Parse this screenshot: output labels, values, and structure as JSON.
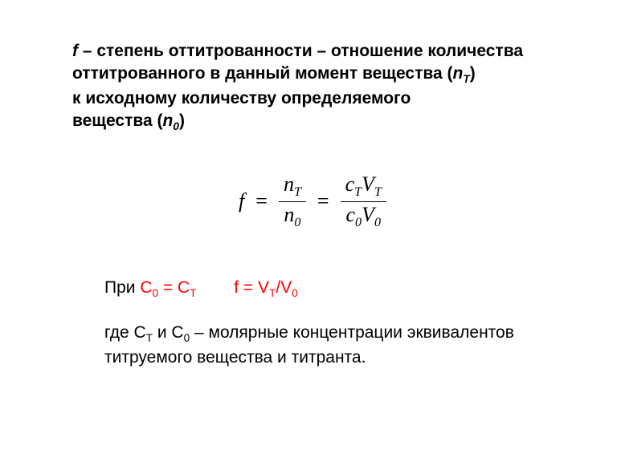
{
  "colors": {
    "text": "#000000",
    "accent": "#ff0000",
    "background": "#ffffff"
  },
  "typography": {
    "body_family": "Arial",
    "formula_family": "Times New Roman",
    "body_size_pt": 16,
    "formula_size_pt": 20
  },
  "definition": {
    "line1_a": "f",
    "line1_b": " – степень оттитрованности – отношение количества",
    "line2_a": "оттитрованного в данный момент вещества (",
    "line2_var": "n",
    "line2_sub": "T",
    "line2_b": ")",
    "line3": "к исходному количеству определяемого",
    "line4_a": "вещества (",
    "line4_var": "n",
    "line4_sub": "0",
    "line4_b": ")"
  },
  "formula": {
    "lhs": "f",
    "eq": "=",
    "frac1": {
      "num_base": "n",
      "num_sub": "T",
      "den_base": "n",
      "den_sub": "0"
    },
    "frac2": {
      "num_c": "c",
      "num_c_sub": "T",
      "num_v": "V",
      "num_v_sub": "T",
      "den_c": "c",
      "den_c_sub": "0",
      "den_v": "V",
      "den_v_sub": "0"
    }
  },
  "condition": {
    "prefix": "При ",
    "eq1_l_base": "C",
    "eq1_l_sub": "0",
    "eq1_mid": " = ",
    "eq1_r_base": "C",
    "eq1_r_sub": "T",
    "gap": "        ",
    "eq2_l": "f = V",
    "eq2_l_sub": "T",
    "eq2_slash": "/V",
    "eq2_r_sub": "0"
  },
  "note": {
    "a": "где ",
    "c1_base": "C",
    "c1_sub": "T",
    "mid": " и ",
    "c2_base": "C",
    "c2_sub": "0",
    "b": " – молярные концентрации эквивалентов",
    "line2": "титруемого вещества и титранта."
  }
}
